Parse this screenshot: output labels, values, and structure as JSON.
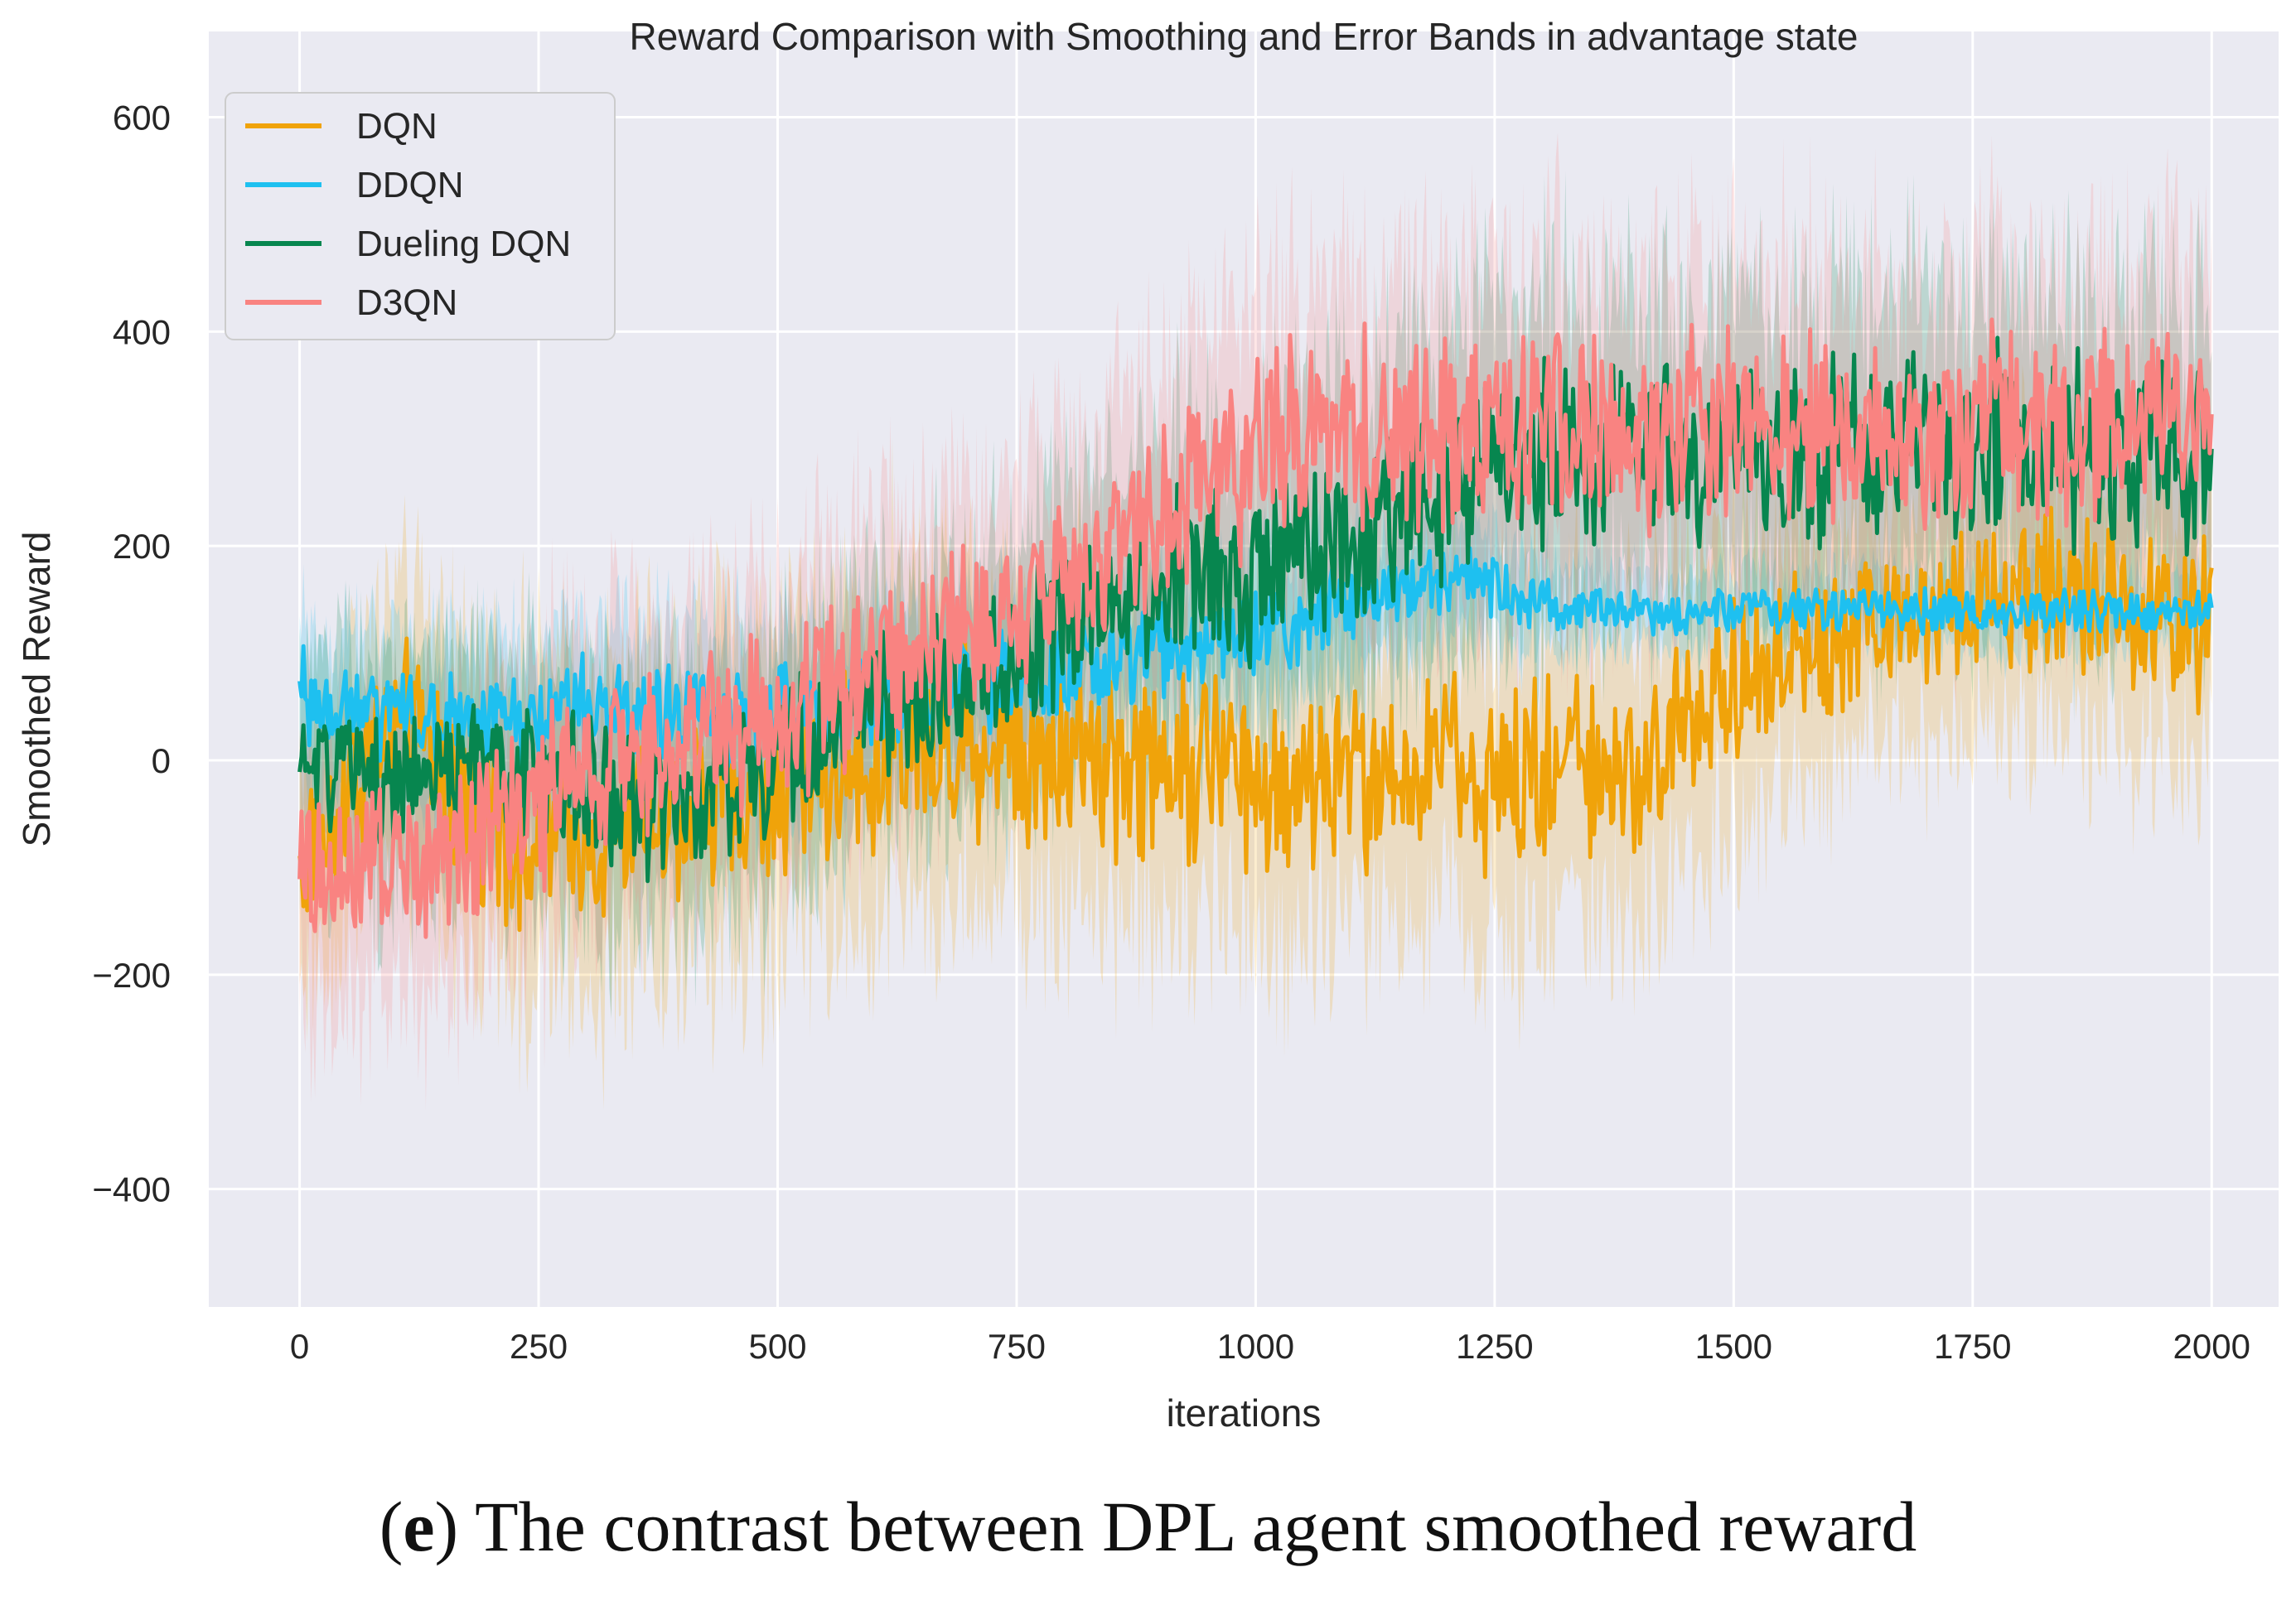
{
  "chart_data": {
    "type": "line",
    "title": "Reward Comparison with Smoothing and Error Bands in advantage state",
    "xlabel": "iterations",
    "ylabel": "Smoothed Reward",
    "xlim": [
      -95,
      2070
    ],
    "ylim": [
      -510,
      680
    ],
    "xticks": [
      0,
      250,
      500,
      750,
      1000,
      1250,
      1500,
      1750,
      2000
    ],
    "yticks": [
      -400,
      -200,
      0,
      200,
      400,
      600
    ],
    "xtick_labels": [
      "0",
      "250",
      "500",
      "750",
      "1000",
      "1250",
      "1500",
      "1750",
      "2000"
    ],
    "ytick_labels": [
      "−400",
      "−200",
      "0",
      "200",
      "400",
      "600"
    ],
    "grid": true,
    "background": "#eaeaf2",
    "legend_position": "top-left",
    "error_bands": true,
    "series": [
      {
        "name": "DQN",
        "color": "#f0a30a",
        "x": [
          0,
          100,
          200,
          300,
          400,
          500,
          600,
          700,
          800,
          900,
          1000,
          1100,
          1200,
          1300,
          1400,
          1500,
          1600,
          1700,
          1800,
          1900,
          2000
        ],
        "y": [
          -100,
          40,
          -60,
          -70,
          -40,
          -20,
          0,
          20,
          10,
          0,
          -10,
          -20,
          -10,
          -10,
          0,
          80,
          110,
          140,
          150,
          160,
          120
        ],
        "band": [
          120,
          140,
          160,
          160,
          160,
          170,
          170,
          170,
          170,
          170,
          170,
          170,
          170,
          170,
          160,
          150,
          140,
          140,
          140,
          150,
          150
        ]
      },
      {
        "name": "DDQN",
        "color": "#1ec0f0",
        "x": [
          0,
          100,
          200,
          300,
          400,
          500,
          600,
          700,
          800,
          900,
          1000,
          1100,
          1200,
          1300,
          1400,
          1500,
          1600,
          1700,
          1800,
          1900,
          2000
        ],
        "y": [
          60,
          40,
          30,
          50,
          40,
          40,
          60,
          70,
          80,
          100,
          120,
          150,
          170,
          145,
          140,
          140,
          140,
          140,
          140,
          140,
          140
        ],
        "band": [
          80,
          80,
          90,
          90,
          90,
          90,
          90,
          90,
          80,
          80,
          80,
          70,
          60,
          50,
          40,
          40,
          40,
          40,
          40,
          40,
          40
        ]
      },
      {
        "name": "Dueling DQN",
        "color": "#07864f",
        "x": [
          0,
          100,
          200,
          300,
          400,
          500,
          600,
          700,
          800,
          900,
          1000,
          1100,
          1200,
          1300,
          1400,
          1500,
          1600,
          1700,
          1800,
          1900,
          2000
        ],
        "y": [
          0,
          -20,
          0,
          -30,
          -40,
          0,
          40,
          80,
          120,
          170,
          180,
          210,
          250,
          280,
          290,
          300,
          290,
          290,
          300,
          280,
          280
        ],
        "band": [
          120,
          120,
          130,
          130,
          130,
          130,
          130,
          130,
          140,
          150,
          160,
          170,
          170,
          170,
          160,
          160,
          160,
          160,
          160,
          160,
          160
        ]
      },
      {
        "name": "D3QN",
        "color": "#f98381",
        "x": [
          0,
          100,
          200,
          300,
          400,
          500,
          600,
          700,
          800,
          900,
          1000,
          1100,
          1200,
          1300,
          1400,
          1500,
          1600,
          1700,
          1800,
          1900,
          2000
        ],
        "y": [
          -110,
          -90,
          -60,
          -10,
          20,
          40,
          80,
          120,
          160,
          230,
          290,
          310,
          310,
          310,
          310,
          310,
          310,
          310,
          310,
          310,
          310
        ],
        "band": [
          150,
          150,
          150,
          150,
          150,
          150,
          150,
          150,
          150,
          160,
          170,
          170,
          170,
          170,
          170,
          170,
          170,
          170,
          170,
          170,
          170
        ]
      }
    ]
  },
  "caption": {
    "letter": "e",
    "open": "(",
    "close": ")",
    "text": " The contrast between DPL agent smoothed reward"
  }
}
